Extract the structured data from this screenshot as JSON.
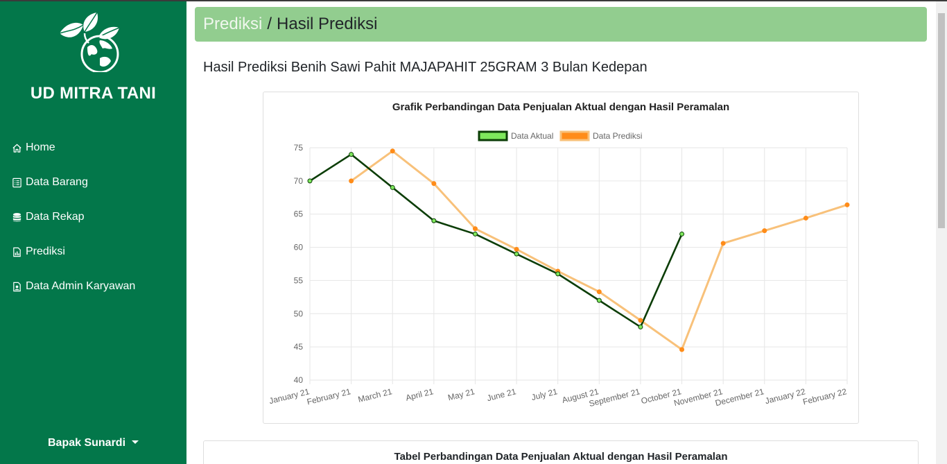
{
  "sidebar": {
    "brand": "UD MITRA TANI",
    "items": [
      {
        "label": "Home",
        "icon": "home-icon"
      },
      {
        "label": "Data Barang",
        "icon": "list-icon"
      },
      {
        "label": "Data Rekap",
        "icon": "database-icon"
      },
      {
        "label": "Prediksi",
        "icon": "chart-icon"
      },
      {
        "label": "Data Admin Karyawan",
        "icon": "id-card-icon"
      }
    ],
    "user": "Bapak Sunardi"
  },
  "breadcrumb": {
    "parent": "Prediksi",
    "separator": "/",
    "current": "Hasil Prediksi"
  },
  "page_title": "Hasil Prediksi Benih Sawi Pahit MAJAPAHIT 25GRAM 3 Bulan Kedepan",
  "table_card": {
    "title": "Tabel Perbandingan Data Penjualan Aktual dengan Hasil Peramalan"
  },
  "colors": {
    "sidebar": "#03774a",
    "breadcrumb": "#92cd8f",
    "actual_line": "#0b3d06",
    "actual_point": "#7ee85c",
    "prediction_line": "#f8c17a",
    "prediction_point": "#ff8c19"
  },
  "chart_data": {
    "type": "line",
    "title": "Grafik Perbandingan Data Penjualan Aktual dengan Hasil Peramalan",
    "categories": [
      "January 21",
      "February 21",
      "March 21",
      "April 21",
      "May 21",
      "June 21",
      "July 21",
      "August 21",
      "September 21",
      "October 21",
      "November 21",
      "December 21",
      "January 22",
      "February 22"
    ],
    "series": [
      {
        "name": "Data Aktual",
        "values": [
          70,
          74,
          69,
          64,
          62,
          59,
          56,
          52,
          48,
          62,
          null,
          null,
          null,
          null
        ]
      },
      {
        "name": "Data Prediksi",
        "values": [
          null,
          70,
          74.5,
          69.6,
          62.8,
          59.7,
          56.4,
          53.3,
          49,
          44.6,
          60.6,
          62.5,
          64.4,
          66.4
        ]
      }
    ],
    "ylim": [
      40,
      75
    ],
    "yticks": [
      40,
      45,
      50,
      55,
      60,
      65,
      70,
      75
    ],
    "grid": true,
    "legend": "top"
  }
}
